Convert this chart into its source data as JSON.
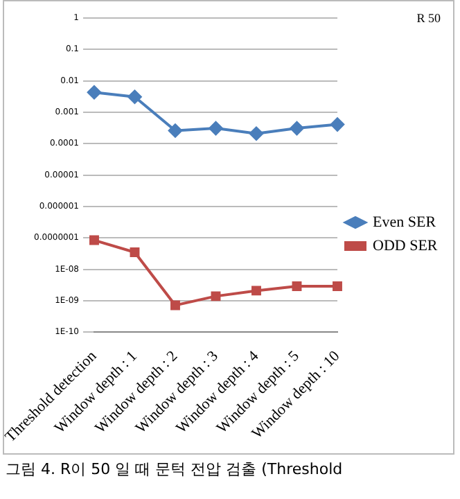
{
  "chart_data": {
    "type": "line",
    "categories": [
      "Threshold detection",
      "Window depth : 1",
      "Window depth : 2",
      "Window depth : 3",
      "Window depth : 4",
      "Window depth : 5",
      "Window depth : 10"
    ],
    "series": [
      {
        "name": "Even SER",
        "color": "#4a7ebb",
        "marker": "diamond",
        "values": [
          0.0043,
          0.0031,
          0.00026,
          0.00031,
          0.00021,
          0.00031,
          0.00041
        ]
      },
      {
        "name": "ODD SER",
        "color": "#be4b48",
        "marker": "square",
        "values": [
          8.5e-08,
          3.5e-08,
          7.2e-10,
          1.4e-09,
          2.1e-09,
          2.9e-09,
          2.9e-09
        ]
      }
    ],
    "log": "y",
    "ylim": [
      1e-10,
      1
    ],
    "yticks": [
      1,
      0.1,
      0.01,
      0.001,
      0.0001,
      {
        "value": 1e-05,
        "label": "0.00001"
      },
      {
        "value": 1e-06,
        "label": "0.000001"
      },
      {
        "value": 1e-07,
        "label": "0.0000001"
      },
      {
        "value": 1e-08,
        "label": "1E-08"
      },
      {
        "value": 1e-09,
        "label": "1E-09"
      },
      {
        "value": 1e-10,
        "label": "1E-10"
      }
    ],
    "grid": "y",
    "legend": "right",
    "line_style": "solid",
    "annotations": [
      "R 50",
      "그림 4. R이 50 일 때 문턱 전압 검출 (Threshold"
    ]
  }
}
